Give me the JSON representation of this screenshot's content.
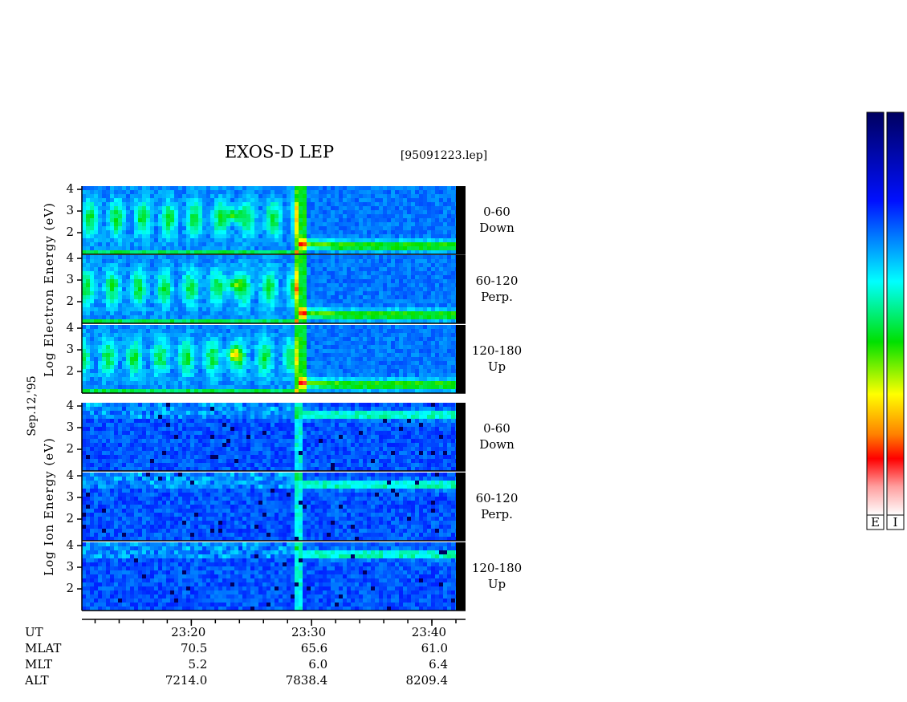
{
  "chart_data": {
    "type": "spectrogram",
    "title": "EXOS-D LEP",
    "file": "[95091223.lep]",
    "date": "Sep.12,'95",
    "groups": [
      {
        "ylabel": "Log Electron Energy (eV)",
        "panels": [
          [
            "0-60",
            "Down"
          ],
          [
            "60-120",
            "Perp."
          ],
          [
            "120-180",
            "Up"
          ]
        ]
      },
      {
        "ylabel": "Log Ion Energy (eV)",
        "panels": [
          [
            "0-60",
            "Down"
          ],
          [
            "60-120",
            "Perp."
          ],
          [
            "120-180",
            "Up"
          ]
        ]
      }
    ],
    "ylim": [
      1,
      4.15
    ],
    "yticks": [
      2,
      3,
      4
    ],
    "xlim": [
      1390.9,
      1422.8
    ],
    "xticks": [
      {
        "value": 1400,
        "label": "23:20"
      },
      {
        "value": 1410,
        "label": "23:30"
      },
      {
        "value": 1420,
        "label": "23:40"
      }
    ],
    "xminor": [
      1392,
      1394,
      1396,
      1398,
      1400,
      1402,
      1404,
      1406,
      1408,
      1410,
      1412,
      1414,
      1416,
      1418,
      1420,
      1422
    ],
    "orbit": [
      {
        "name": "UT",
        "values": []
      },
      {
        "name": "MLAT",
        "values": [
          "70.5",
          "65.6",
          "61.0"
        ]
      },
      {
        "name": "MLT",
        "values": [
          "5.2",
          "6.0",
          "6.4"
        ]
      },
      {
        "name": "ALT",
        "values": [
          "7214.0",
          "7838.4",
          "8209.4"
        ]
      }
    ],
    "colorbars": [
      "E",
      "I"
    ]
  }
}
